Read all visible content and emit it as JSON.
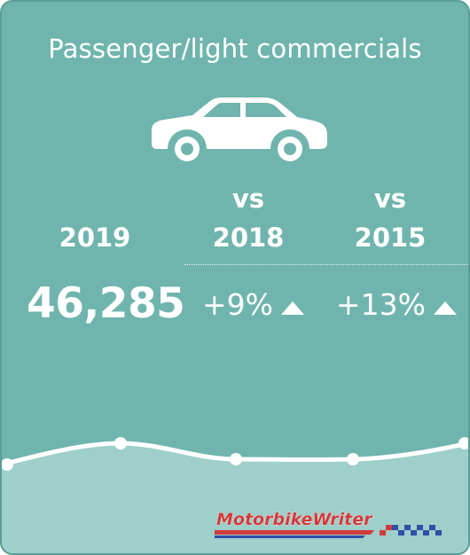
{
  "card": {
    "title": "Passenger/light commercials",
    "icon": "car-icon",
    "columns": {
      "current_year": "2019",
      "vs_2018_line1": "vs",
      "vs_2018_line2": "2018",
      "vs_2015_line1": "vs",
      "vs_2015_line2": "2015"
    },
    "values": {
      "current": "46,285",
      "change_2018": "+9%",
      "change_2015": "+13%"
    },
    "colors": {
      "card_bg": "#70b5ad",
      "wave_fill": "#9ecfca",
      "text": "#ffffff",
      "logo_red": "#d23a3a",
      "logo_blue": "#2f4fa8"
    }
  },
  "logo": {
    "text": "MotorbikeWriter"
  }
}
